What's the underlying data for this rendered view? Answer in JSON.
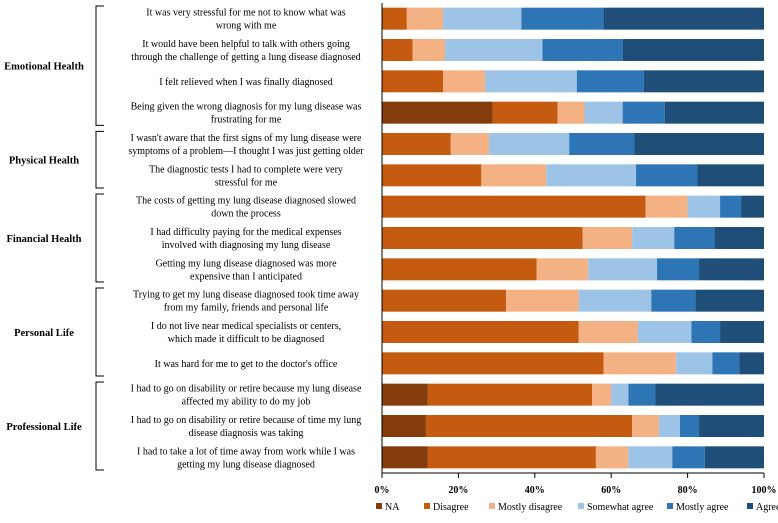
{
  "chart_data": {
    "type": "bar",
    "orientation": "horizontal",
    "stacked": true,
    "title": "",
    "xlabel": "",
    "ylabel": "",
    "xlim": [
      0,
      100
    ],
    "x_ticks": [
      "0%",
      "20%",
      "40%",
      "60%",
      "80%",
      "100%"
    ],
    "legend_position": "bottom",
    "series": [
      {
        "name": "NA",
        "color": "#843C0C"
      },
      {
        "name": "Disagree",
        "color": "#C55A11"
      },
      {
        "name": "Mostly disagree",
        "color": "#F4B183"
      },
      {
        "name": "Somewhat agree",
        "color": "#9DC3E6"
      },
      {
        "name": "Mostly agree",
        "color": "#2E75B6"
      },
      {
        "name": "Agree",
        "color": "#1F4E79"
      }
    ],
    "groups": [
      {
        "name": "Emotional Health",
        "items": [
          {
            "label": [
              "It was very stressful for me not to know what was",
              "wrong with me"
            ],
            "values": [
              0,
              6.5,
              9.5,
              20.5,
              21.5,
              42
            ]
          },
          {
            "label": [
              "It would have been helpful to talk with others going",
              "through the challenge of getting a lung disease diagnosed"
            ],
            "values": [
              0,
              8,
              8.5,
              25.5,
              21,
              37
            ]
          },
          {
            "label": [
              "I felt relieved when I was finally diagnosed"
            ],
            "values": [
              0,
              16,
              11,
              24,
              17.5,
              31.5
            ]
          },
          {
            "label": [
              "Being given the wrong diagnosis for my lung disease was",
              "frustrating for me"
            ],
            "values": [
              29,
              17,
              7,
              10,
              11,
              26
            ]
          }
        ]
      },
      {
        "name": "Physical Health",
        "items": [
          {
            "label": [
              "I wasn't aware that the first signs of my lung disease were",
              "symptoms of a problem—I thought I was just getting older"
            ],
            "values": [
              0,
              18,
              10,
              21,
              17,
              34
            ]
          },
          {
            "label": [
              "The diagnostic tests I had to complete were very",
              "stressful for me"
            ],
            "values": [
              0,
              26,
              17,
              23.5,
              16,
              17.5
            ]
          }
        ]
      },
      {
        "name": "Financial Health",
        "items": [
          {
            "label": [
              "The costs of getting my lung disease diagnosed slowed",
              "down the process"
            ],
            "values": [
              0,
              69,
              11,
              8.5,
              5.5,
              6
            ]
          },
          {
            "label": [
              "I had difficulty paying for the medical expenses",
              "involved with diagnosing my lung disease"
            ],
            "values": [
              0,
              52.5,
              13,
              11,
              10.5,
              13
            ]
          },
          {
            "label": [
              "Getting my lung disease diagnosed was more",
              "expensive than I anticipated"
            ],
            "values": [
              0,
              40.5,
              13.5,
              18,
              11,
              17
            ]
          }
        ]
      },
      {
        "name": "Personal Life",
        "items": [
          {
            "label": [
              "Trying to get my lung disease diagnosed took time away",
              "from my family, friends and personal life"
            ],
            "values": [
              0,
              32.5,
              19,
              19,
              11.5,
              18
            ]
          },
          {
            "label": [
              "I do not live near medical specialists or centers,",
              "which made it difficult to be diagnosed"
            ],
            "values": [
              0,
              51.5,
              15.5,
              14,
              7.5,
              11.5
            ]
          },
          {
            "label": [
              "It was hard for me to get to the doctor's office"
            ],
            "values": [
              0,
              58,
              19,
              9.5,
              7,
              6.5
            ]
          }
        ]
      },
      {
        "name": "Professional Life",
        "items": [
          {
            "label": [
              "I had to go on disability or retire because my lung disease",
              "affected my ability to do my job"
            ],
            "values": [
              12,
              43,
              5,
              4.5,
              7,
              28.5
            ]
          },
          {
            "label": [
              "I had to go on disability or retire because of time my lung",
              "disease diagnosis was taking"
            ],
            "values": [
              11.5,
              54,
              7,
              5.5,
              5,
              17
            ]
          },
          {
            "label": [
              "I had to take a lot of time away from work while I was",
              "getting my lung disease diagnosed"
            ],
            "values": [
              12,
              44,
              8.5,
              11.5,
              8.5,
              15.5
            ]
          }
        ]
      }
    ]
  }
}
